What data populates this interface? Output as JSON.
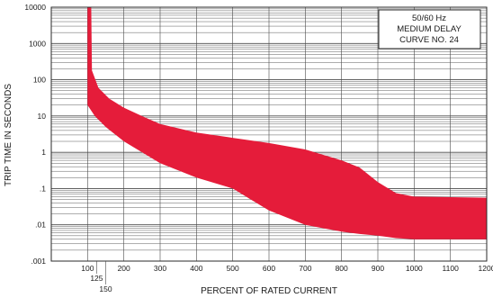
{
  "chart_data": {
    "type": "area",
    "title_box": [
      "50/60 Hz",
      "MEDIUM DELAY",
      "CURVE NO. 24"
    ],
    "xlabel": "PERCENT OF RATED CURRENT",
    "ylabel": "TRIP TIME IN SECONDS",
    "x_scale": "linear",
    "y_scale": "log",
    "xlim": [
      0,
      1200
    ],
    "ylim": [
      0.001,
      10000
    ],
    "grid": true,
    "x_ticks": [
      {
        "value": 100,
        "label": "100",
        "row": 0
      },
      {
        "value": 125,
        "label": "125",
        "row": 1
      },
      {
        "value": 150,
        "label": "150",
        "row": 2
      },
      {
        "value": 200,
        "label": "200",
        "row": 0
      },
      {
        "value": 300,
        "label": "300",
        "row": 0
      },
      {
        "value": 400,
        "label": "400",
        "row": 0
      },
      {
        "value": 500,
        "label": "500",
        "row": 0
      },
      {
        "value": 600,
        "label": "600",
        "row": 0
      },
      {
        "value": 700,
        "label": "700",
        "row": 0
      },
      {
        "value": 800,
        "label": "800",
        "row": 0
      },
      {
        "value": 900,
        "label": "900",
        "row": 0
      },
      {
        "value": 1000,
        "label": "1000",
        "row": 0
      },
      {
        "value": 1100,
        "label": "1100",
        "row": 0
      },
      {
        "value": 1200,
        "label": "1200",
        "row": 0
      }
    ],
    "y_ticks": [
      {
        "value": 10000,
        "label": "10000"
      },
      {
        "value": 1000,
        "label": "1000"
      },
      {
        "value": 100,
        "label": "100"
      },
      {
        "value": 10,
        "label": "10"
      },
      {
        "value": 1,
        "label": "1"
      },
      {
        "value": 0.1,
        "label": ".1"
      },
      {
        "value": 0.01,
        "label": ".01"
      },
      {
        "value": 0.001,
        "label": ".001"
      }
    ],
    "trip_band": {
      "color": "#e51c3a",
      "upper": [
        [
          100,
          10000
        ],
        [
          110,
          10000
        ],
        [
          112,
          180
        ],
        [
          130,
          60
        ],
        [
          160,
          30
        ],
        [
          200,
          17
        ],
        [
          250,
          10
        ],
        [
          300,
          6
        ],
        [
          400,
          3.5
        ],
        [
          500,
          2.5
        ],
        [
          600,
          1.8
        ],
        [
          700,
          1.2
        ],
        [
          800,
          0.6
        ],
        [
          850,
          0.38
        ],
        [
          900,
          0.15
        ],
        [
          950,
          0.075
        ],
        [
          1000,
          0.06
        ],
        [
          1100,
          0.058
        ],
        [
          1200,
          0.056
        ]
      ],
      "lower": [
        [
          1200,
          0.004
        ],
        [
          1100,
          0.004
        ],
        [
          1000,
          0.004
        ],
        [
          950,
          0.0043
        ],
        [
          900,
          0.005
        ],
        [
          850,
          0.0056
        ],
        [
          800,
          0.0065
        ],
        [
          700,
          0.01
        ],
        [
          600,
          0.025
        ],
        [
          550,
          0.05
        ],
        [
          500,
          0.1
        ],
        [
          400,
          0.2
        ],
        [
          300,
          0.5
        ],
        [
          250,
          1
        ],
        [
          200,
          2
        ],
        [
          150,
          5
        ],
        [
          120,
          10
        ],
        [
          100,
          20
        ]
      ]
    },
    "colors": {
      "band": "#e51c3a",
      "grid": "#4a4a4a",
      "background": "#ffffff"
    }
  }
}
